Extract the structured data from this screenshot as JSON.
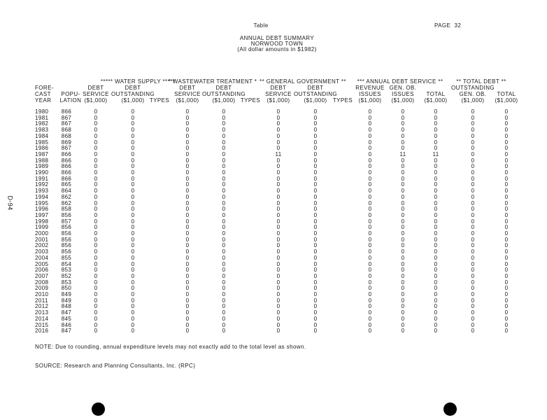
{
  "header": {
    "label": "Table",
    "page": "PAGE  32",
    "title": "ANNUAL DEBT SUMMARY",
    "subtitle": "NORWOOD TOWN",
    "note": "(All dollar amounts in $1982)"
  },
  "side_label": "D-94",
  "groups": [
    "***** WATER SUPPLY *****",
    "* WASTEWATER TREATMENT *",
    "** GENERAL GOVERNMENT **",
    "*** ANNUAL DEBT SERVICE **",
    "** TOTAL DEBT **"
  ],
  "columns": [
    [
      "FORE-",
      "CAST",
      "YEAR"
    ],
    [
      "",
      "POPU-",
      "LATION"
    ],
    [
      "DEBT",
      "SERVICE",
      "($1,000)"
    ],
    [
      "DEBT",
      "OUTSTANDING",
      "($1,000)"
    ],
    [
      "",
      "",
      "TYPES"
    ],
    [
      "DEBT",
      "SERVICE",
      "($1,000)"
    ],
    [
      "DEBT",
      "OUTSTANDING",
      "($1,000)"
    ],
    [
      "",
      "",
      "TYPES"
    ],
    [
      "DEBT",
      "SERVICE",
      "($1,000)"
    ],
    [
      "DEBT",
      "OUTSTANDING",
      "($1,000)"
    ],
    [
      "",
      "",
      "TYPES"
    ],
    [
      "REVENUE",
      "ISSUES",
      "($1,000)"
    ],
    [
      "GEN. OB.",
      "ISSUES",
      "($1,000)"
    ],
    [
      "",
      "TOTAL",
      "($1,000)"
    ],
    [
      "OUTSTANDING",
      "GEN. OB.",
      "($1,000)"
    ],
    [
      "",
      "TOTAL",
      "($1,000)"
    ]
  ],
  "rows": [
    [
      "1980",
      "866",
      "0",
      "0",
      "",
      "0",
      "0",
      "",
      "0",
      "0",
      "",
      "0",
      "0",
      "0",
      "0",
      "0"
    ],
    [
      "1981",
      "867",
      "0",
      "0",
      "",
      "0",
      "0",
      "",
      "0",
      "0",
      "",
      "0",
      "0",
      "0",
      "0",
      "0"
    ],
    [
      "1982",
      "867",
      "0",
      "0",
      "",
      "0",
      "0",
      "",
      "0",
      "0",
      "",
      "0",
      "0",
      "0",
      "0",
      "0"
    ],
    [
      "1983",
      "868",
      "0",
      "0",
      "",
      "0",
      "0",
      "",
      "0",
      "0",
      "",
      "0",
      "0",
      "0",
      "0",
      "0"
    ],
    [
      "1984",
      "868",
      "0",
      "0",
      "",
      "0",
      "0",
      "",
      "0",
      "0",
      "",
      "0",
      "0",
      "0",
      "0",
      "0"
    ],
    [
      "1985",
      "869",
      "0",
      "0",
      "",
      "0",
      "0",
      "",
      "0",
      "0",
      "",
      "0",
      "0",
      "0",
      "0",
      "0"
    ],
    [
      "1986",
      "867",
      "0",
      "0",
      "",
      "0",
      "0",
      "",
      "0",
      "0",
      "",
      "0",
      "0",
      "0",
      "0",
      "0"
    ],
    [
      "1987",
      "866",
      "0",
      "0",
      "",
      "0",
      "0",
      "",
      "11",
      "0",
      "",
      "0",
      "11",
      "11",
      "0",
      "0"
    ],
    [
      "1988",
      "866",
      "0",
      "0",
      "",
      "0",
      "0",
      "",
      "0",
      "0",
      "",
      "0",
      "0",
      "0",
      "0",
      "0"
    ],
    [
      "1989",
      "866",
      "0",
      "0",
      "",
      "0",
      "0",
      "",
      "0",
      "0",
      "",
      "0",
      "0",
      "0",
      "0",
      "0"
    ],
    [
      "1990",
      "866",
      "0",
      "0",
      "",
      "0",
      "0",
      "",
      "0",
      "0",
      "",
      "0",
      "0",
      "0",
      "0",
      "0"
    ],
    [
      "1991",
      "866",
      "0",
      "0",
      "",
      "0",
      "0",
      "",
      "0",
      "0",
      "",
      "0",
      "0",
      "0",
      "0",
      "0"
    ],
    [
      "1992",
      "865",
      "0",
      "0",
      "",
      "0",
      "0",
      "",
      "0",
      "0",
      "",
      "0",
      "0",
      "0",
      "0",
      "0"
    ],
    [
      "1993",
      "864",
      "0",
      "0",
      "",
      "0",
      "0",
      "",
      "0",
      "0",
      "",
      "0",
      "0",
      "0",
      "0",
      "0"
    ],
    [
      "1994",
      "862",
      "0",
      "0",
      "",
      "0",
      "0",
      "",
      "0",
      "0",
      "",
      "0",
      "0",
      "0",
      "0",
      "0"
    ],
    [
      "1995",
      "862",
      "0",
      "0",
      "",
      "0",
      "0",
      "",
      "0",
      "0",
      "",
      "0",
      "0",
      "0",
      "0",
      "0"
    ],
    [
      "1996",
      "858",
      "0",
      "0",
      "",
      "0",
      "0",
      "",
      "0",
      "0",
      "",
      "0",
      "0",
      "0",
      "0",
      "0"
    ],
    [
      "1997",
      "856",
      "0",
      "0",
      "",
      "0",
      "0",
      "",
      "0",
      "0",
      "",
      "0",
      "0",
      "0",
      "0",
      "0"
    ],
    [
      "1998",
      "857",
      "0",
      "0",
      "",
      "0",
      "0",
      "",
      "0",
      "0",
      "",
      "0",
      "0",
      "0",
      "0",
      "0"
    ],
    [
      "1999",
      "856",
      "0",
      "0",
      "",
      "0",
      "0",
      "",
      "0",
      "0",
      "",
      "0",
      "0",
      "0",
      "0",
      "0"
    ],
    [
      "2000",
      "856",
      "0",
      "0",
      "",
      "0",
      "0",
      "",
      "0",
      "0",
      "",
      "0",
      "0",
      "0",
      "0",
      "0"
    ],
    [
      "2001",
      "856",
      "0",
      "0",
      "",
      "0",
      "0",
      "",
      "0",
      "0",
      "",
      "0",
      "0",
      "0",
      "0",
      "0"
    ],
    [
      "2002",
      "856",
      "0",
      "0",
      "",
      "0",
      "0",
      "",
      "0",
      "0",
      "",
      "0",
      "0",
      "0",
      "0",
      "0"
    ],
    [
      "2003",
      "856",
      "0",
      "0",
      "",
      "0",
      "0",
      "",
      "0",
      "0",
      "",
      "0",
      "0",
      "0",
      "0",
      "0"
    ],
    [
      "2004",
      "855",
      "0",
      "0",
      "",
      "0",
      "0",
      "",
      "0",
      "0",
      "",
      "0",
      "0",
      "0",
      "0",
      "0"
    ],
    [
      "2005",
      "854",
      "0",
      "0",
      "",
      "0",
      "0",
      "",
      "0",
      "0",
      "",
      "0",
      "0",
      "0",
      "0",
      "0"
    ],
    [
      "2006",
      "853",
      "0",
      "0",
      "",
      "0",
      "0",
      "",
      "0",
      "0",
      "",
      "0",
      "0",
      "0",
      "0",
      "0"
    ],
    [
      "2007",
      "852",
      "0",
      "0",
      "",
      "0",
      "0",
      "",
      "0",
      "0",
      "",
      "0",
      "0",
      "0",
      "0",
      "0"
    ],
    [
      "2008",
      "853",
      "0",
      "0",
      "",
      "0",
      "0",
      "",
      "0",
      "0",
      "",
      "0",
      "0",
      "0",
      "0",
      "0"
    ],
    [
      "2009",
      "850",
      "0",
      "0",
      "",
      "0",
      "0",
      "",
      "0",
      "0",
      "",
      "0",
      "0",
      "0",
      "0",
      "0"
    ],
    [
      "2010",
      "849",
      "0",
      "0",
      "",
      "0",
      "0",
      "",
      "0",
      "0",
      "",
      "0",
      "0",
      "0",
      "0",
      "0"
    ],
    [
      "2011",
      "849",
      "0",
      "0",
      "",
      "0",
      "0",
      "",
      "0",
      "0",
      "",
      "0",
      "0",
      "0",
      "0",
      "0"
    ],
    [
      "2012",
      "848",
      "0",
      "0",
      "",
      "0",
      "0",
      "",
      "0",
      "0",
      "",
      "0",
      "0",
      "0",
      "0",
      "0"
    ],
    [
      "2013",
      "847",
      "0",
      "0",
      "",
      "0",
      "0",
      "",
      "0",
      "0",
      "",
      "0",
      "0",
      "0",
      "0",
      "0"
    ],
    [
      "2014",
      "845",
      "0",
      "0",
      "",
      "0",
      "0",
      "",
      "0",
      "0",
      "",
      "0",
      "0",
      "0",
      "0",
      "0"
    ],
    [
      "2015",
      "846",
      "0",
      "0",
      "",
      "0",
      "0",
      "",
      "0",
      "0",
      "",
      "0",
      "0",
      "0",
      "0",
      "0"
    ],
    [
      "2016",
      "847",
      "0",
      "0",
      "",
      "0",
      "0",
      "",
      "0",
      "0",
      "",
      "0",
      "0",
      "0",
      "0",
      "0"
    ]
  ],
  "footnote": "NOTE: Due to rounding, annual expenditure levels may not exactly add to the total level as shown.",
  "source": "SOURCE: Research and Planning Consultants, Inc. (RPC)"
}
